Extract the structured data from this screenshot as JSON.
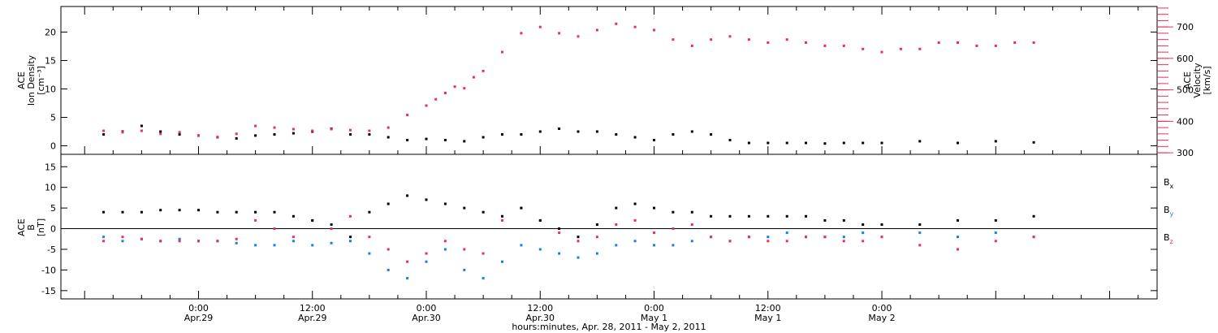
{
  "chart_data": [
    {
      "type": "scatter",
      "panel": "top",
      "ylabel_left": [
        "ACE",
        "Ion Density",
        "[cm⁻³]"
      ],
      "ylabel_right": [
        "ACE",
        "Velocity",
        "[km/s]"
      ],
      "ylim_left": [
        -1.5,
        24.5
      ],
      "ylim_right": [
        295,
        765
      ],
      "yticks_left": [
        0,
        5,
        10,
        15,
        20
      ],
      "yticks_right": [
        300,
        400,
        500,
        600,
        700
      ],
      "colors": {
        "density": "#000000",
        "velocity": "#e8305a"
      },
      "series": [
        {
          "name": "Density",
          "axis": "left",
          "x": [
            -10,
            -8,
            -6,
            -4,
            -2,
            0,
            2,
            4,
            6,
            8,
            10,
            12,
            14,
            16,
            18,
            20,
            22,
            24,
            26,
            28,
            30,
            32,
            34,
            36,
            38,
            40,
            42,
            44,
            46,
            48,
            50,
            52,
            54,
            56,
            58,
            60,
            62,
            64,
            66,
            68,
            70,
            72,
            76,
            80,
            84,
            88
          ],
          "values": [
            2.0,
            2.5,
            3.5,
            2.5,
            2.0,
            1.8,
            1.5,
            1.3,
            1.8,
            2.0,
            2.2,
            2.5,
            3.0,
            2.0,
            2.0,
            1.5,
            1.0,
            1.2,
            1.0,
            0.8,
            1.5,
            2.0,
            2.0,
            2.5,
            3.0,
            2.5,
            2.5,
            2.0,
            1.5,
            1.0,
            2.0,
            2.5,
            2.0,
            1.0,
            0.5,
            0.5,
            0.5,
            0.5,
            0.4,
            0.5,
            0.5,
            0.5,
            0.8,
            0.5,
            0.8,
            0.6
          ]
        },
        {
          "name": "Velocity",
          "axis": "right",
          "x": [
            -10,
            -8,
            -6,
            -4,
            -2,
            0,
            2,
            4,
            6,
            8,
            10,
            12,
            14,
            16,
            18,
            20,
            22,
            24,
            25,
            26,
            27,
            28,
            29,
            30,
            32,
            34,
            36,
            38,
            40,
            42,
            44,
            46,
            48,
            50,
            52,
            54,
            56,
            58,
            60,
            62,
            64,
            66,
            68,
            70,
            72,
            74,
            76,
            78,
            80,
            82,
            84,
            86,
            88
          ],
          "values": [
            370,
            365,
            370,
            360,
            365,
            355,
            350,
            360,
            385,
            380,
            375,
            370,
            375,
            372,
            370,
            380,
            420,
            450,
            470,
            490,
            510,
            505,
            540,
            560,
            620,
            680,
            700,
            680,
            670,
            690,
            710,
            700,
            690,
            660,
            640,
            660,
            670,
            660,
            650,
            660,
            650,
            640,
            640,
            630,
            620,
            630,
            630,
            650,
            650,
            640,
            640,
            650,
            650
          ]
        }
      ]
    },
    {
      "type": "scatter",
      "panel": "bottom",
      "ylabel": [
        "ACE",
        "B",
        "[nT]"
      ],
      "ylim": [
        -17,
        18
      ],
      "yticks": [
        -15,
        -10,
        -5,
        0,
        5,
        10,
        15
      ],
      "colors": {
        "Bx": "#000000",
        "By": "#1a80e0",
        "Bz": "#e8305a"
      },
      "series": [
        {
          "name": "B",
          "subscript": "x",
          "x": [
            -10,
            -8,
            -6,
            -4,
            -2,
            0,
            2,
            4,
            6,
            8,
            10,
            12,
            14,
            16,
            18,
            20,
            22,
            24,
            26,
            28,
            30,
            32,
            34,
            36,
            38,
            40,
            42,
            44,
            46,
            48,
            50,
            52,
            54,
            56,
            58,
            60,
            62,
            64,
            66,
            68,
            70,
            72,
            76,
            80,
            84,
            88
          ],
          "values": [
            4,
            4,
            4,
            4.5,
            4.5,
            4.5,
            4,
            4,
            4,
            4,
            3,
            2,
            1,
            -2,
            4,
            6,
            8,
            7,
            6,
            5,
            4,
            3,
            5,
            2,
            0,
            -2,
            1,
            5,
            6,
            5,
            4,
            4,
            3,
            3,
            3,
            3,
            3,
            3,
            2,
            2,
            1,
            1,
            1,
            2,
            2,
            3
          ]
        },
        {
          "name": "B",
          "subscript": "y",
          "x": [
            -10,
            -8,
            -6,
            -4,
            -2,
            0,
            2,
            4,
            6,
            8,
            10,
            12,
            14,
            16,
            18,
            20,
            22,
            24,
            26,
            28,
            30,
            32,
            34,
            36,
            38,
            40,
            42,
            44,
            46,
            48,
            50,
            52,
            54,
            56,
            58,
            60,
            62,
            64,
            66,
            68,
            70,
            72,
            76,
            80,
            84,
            88
          ],
          "values": [
            -2,
            -3,
            -2.5,
            -3,
            -2.5,
            -3,
            -3,
            -3.5,
            -4,
            -4,
            -3,
            -4,
            -3.5,
            -3,
            -6,
            -10,
            -12,
            -8,
            -5,
            -10,
            -12,
            -8,
            -4,
            -5,
            -6,
            -7,
            -6,
            -4,
            -3,
            -4,
            -4,
            -3,
            -2,
            -3,
            -2,
            -2,
            -1,
            -2,
            -2,
            -2,
            -1,
            -2,
            -1,
            -2,
            -1,
            -2
          ]
        },
        {
          "name": "B",
          "subscript": "z",
          "x": [
            -10,
            -8,
            -6,
            -4,
            -2,
            0,
            2,
            4,
            6,
            8,
            10,
            12,
            14,
            16,
            18,
            20,
            22,
            24,
            26,
            28,
            30,
            32,
            34,
            36,
            38,
            40,
            42,
            44,
            46,
            48,
            50,
            52,
            54,
            56,
            58,
            60,
            62,
            64,
            66,
            68,
            70,
            72,
            76,
            80,
            84,
            88
          ],
          "values": [
            -3,
            -2,
            -2.5,
            -3,
            -3,
            -3,
            -3,
            -2.5,
            2,
            0,
            -2,
            2,
            0,
            3,
            -2,
            -5,
            -8,
            -6,
            -3,
            -5,
            -6,
            2,
            5,
            2,
            -1,
            -3,
            -2,
            1,
            2,
            -1,
            0,
            1,
            -2,
            -3,
            -2,
            -3,
            -3,
            -2,
            -2,
            -3,
            -3,
            -2,
            -4,
            -5,
            -3,
            -2
          ]
        }
      ]
    }
  ],
  "x_axis": {
    "range_hours": [
      -14.5,
      101
    ],
    "ticks": [
      {
        "h": 0,
        "time": "0:00",
        "day": "Apr.29"
      },
      {
        "h": 12,
        "time": "12:00",
        "day": "Apr.29"
      },
      {
        "h": 24,
        "time": "0:00",
        "day": "Apr.30"
      },
      {
        "h": 36,
        "time": "12:00",
        "day": "Apr.30"
      },
      {
        "h": 48,
        "time": "0:00",
        "day": "May 1"
      },
      {
        "h": 60,
        "time": "12:00",
        "day": "May 1"
      },
      {
        "h": 72,
        "time": "0:00",
        "day": "May 2"
      }
    ],
    "title": "hours:minutes, Apr. 28, 2011 - May  2, 2011"
  }
}
